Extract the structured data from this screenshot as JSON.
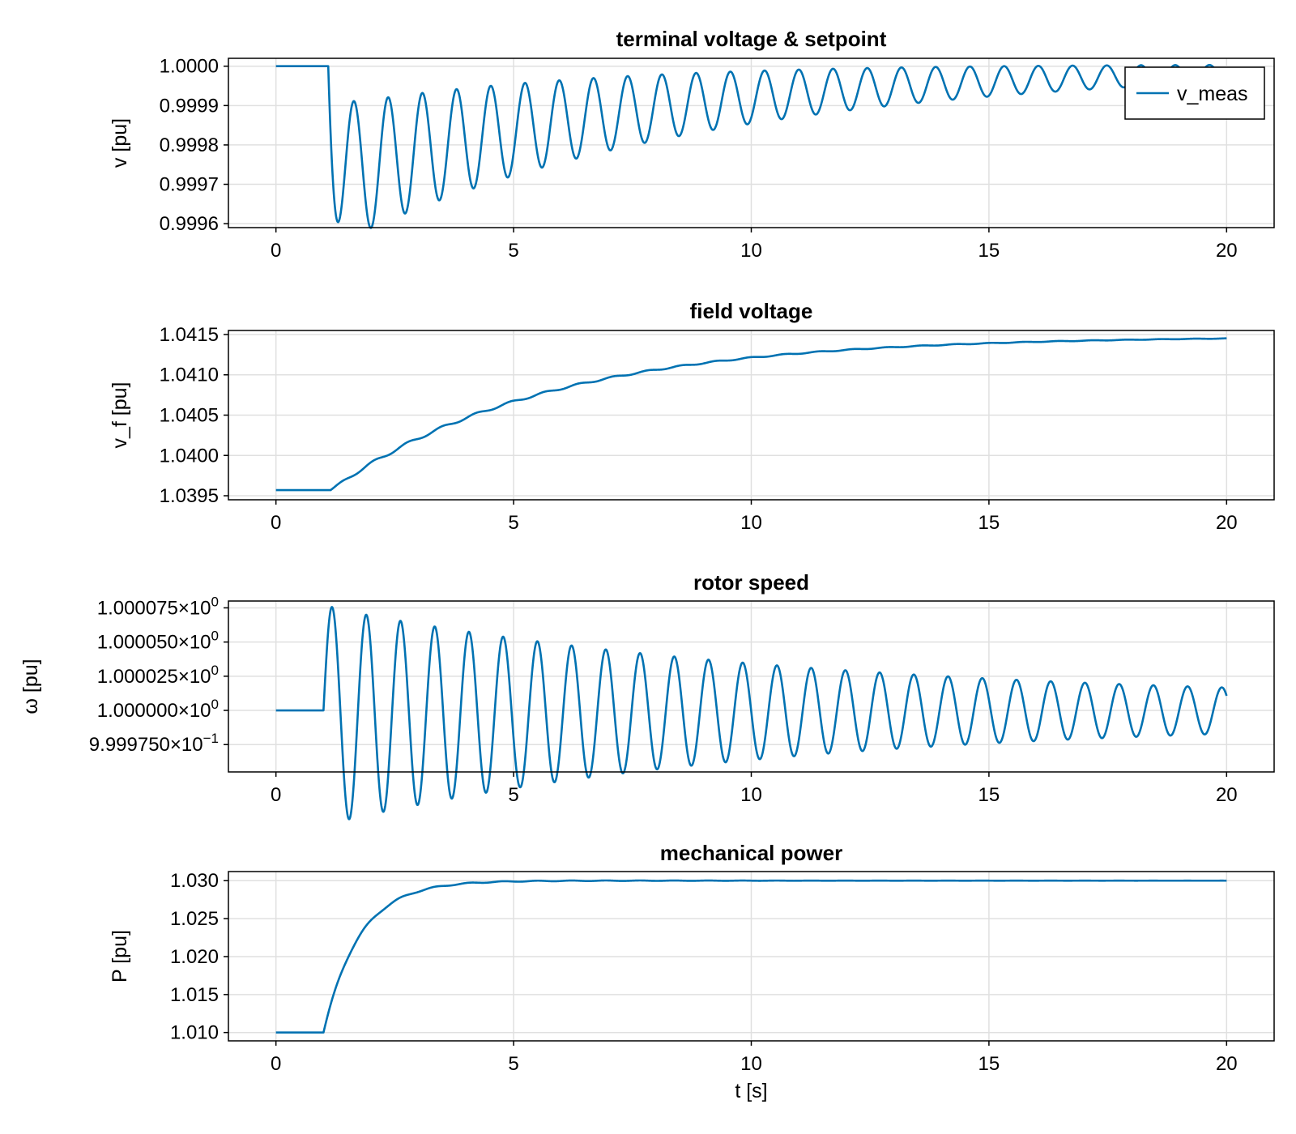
{
  "colors": {
    "series": "#0072b2",
    "grid": "#e0e0e0",
    "axis": "#000000"
  },
  "chart_data": [
    {
      "type": "line",
      "title": "terminal voltage & setpoint",
      "xlabel": "",
      "ylabel": "v [pu]",
      "xlim": [
        -1,
        21
      ],
      "ylim": [
        0.99959,
        1.00002
      ],
      "xticks": [
        0,
        5,
        10,
        15,
        20
      ],
      "yticks": [
        0.9996,
        0.9997,
        0.9998,
        0.9999,
        1.0
      ],
      "ytick_labels": [
        "0.9996",
        "0.9997",
        "0.9998",
        "0.9999",
        "1.0000"
      ],
      "legend": {
        "position": "top-right",
        "entries": [
          "v_meas"
        ]
      },
      "series": [
        {
          "name": "v_meas",
          "model": {
            "t0": 1.1,
            "base": 1.0,
            "offset": -0.000282,
            "tau_off": 7.0,
            "amp": -0.00018,
            "tau_amp": 9.0,
            "period": 0.72,
            "t_end": 20
          }
        }
      ]
    },
    {
      "type": "line",
      "title": "field voltage",
      "xlabel": "",
      "ylabel": "v_f [pu]",
      "xlim": [
        -1,
        21
      ],
      "ylim": [
        1.03945,
        1.04155
      ],
      "xticks": [
        0,
        5,
        10,
        15,
        20
      ],
      "yticks": [
        1.0395,
        1.04,
        1.0405,
        1.041,
        1.0415
      ],
      "ytick_labels": [
        "1.0395",
        "1.0400",
        "1.0405",
        "1.0410",
        "1.0415"
      ],
      "series": [
        {
          "name": "",
          "model": {
            "t0": 1.15,
            "base": 1.03957,
            "target": 1.04148,
            "tau": 4.5,
            "amp": 4.5e-05,
            "tau_amp": 8.0,
            "period": 0.72,
            "t_end": 20,
            "end_value": 1.04144
          }
        }
      ]
    },
    {
      "type": "line",
      "title": "rotor speed",
      "xlabel": "",
      "ylabel": "ω [pu]",
      "xlim": [
        -1,
        21
      ],
      "ylim": [
        0.999955,
        1.00008
      ],
      "xticks": [
        0,
        5,
        10,
        15,
        20
      ],
      "yticks": [
        0.999975,
        1.0,
        1.000025,
        1.00005,
        1.000075
      ],
      "ytick_labels": [
        {
          "mantissa": "9.999750×10",
          "exp": "−1"
        },
        {
          "mantissa": "1.000000×10",
          "exp": "0"
        },
        {
          "mantissa": "1.000025×10",
          "exp": "0"
        },
        {
          "mantissa": "1.000050×10",
          "exp": "0"
        },
        {
          "mantissa": "1.000075×10",
          "exp": "0"
        }
      ],
      "series": [
        {
          "name": "",
          "model": {
            "t0": 1.0,
            "base": 1.0,
            "amp": 7.3e-05,
            "tau_amp": 9.5,
            "floor_amp": 7e-06,
            "offset": -4e-06,
            "tau_off": 6.0,
            "period": 0.72,
            "t_end": 20
          }
        }
      ]
    },
    {
      "type": "line",
      "title": "mechanical power",
      "xlabel": "t [s]",
      "ylabel": "P [pu]",
      "xlim": [
        -1,
        21
      ],
      "ylim": [
        1.0089,
        1.0312
      ],
      "xticks": [
        0,
        5,
        10,
        15,
        20
      ],
      "yticks": [
        1.01,
        1.015,
        1.02,
        1.025,
        1.03
      ],
      "ytick_labels": [
        "1.010",
        "1.015",
        "1.020",
        "1.025",
        "1.030"
      ],
      "series": [
        {
          "name": "",
          "model": {
            "t0": 1.0,
            "base": 1.01,
            "target": 1.03,
            "tau": 0.75,
            "amp": 0.0003,
            "tau_amp": 4.0,
            "period": 0.72,
            "t_end": 20
          }
        }
      ]
    }
  ]
}
